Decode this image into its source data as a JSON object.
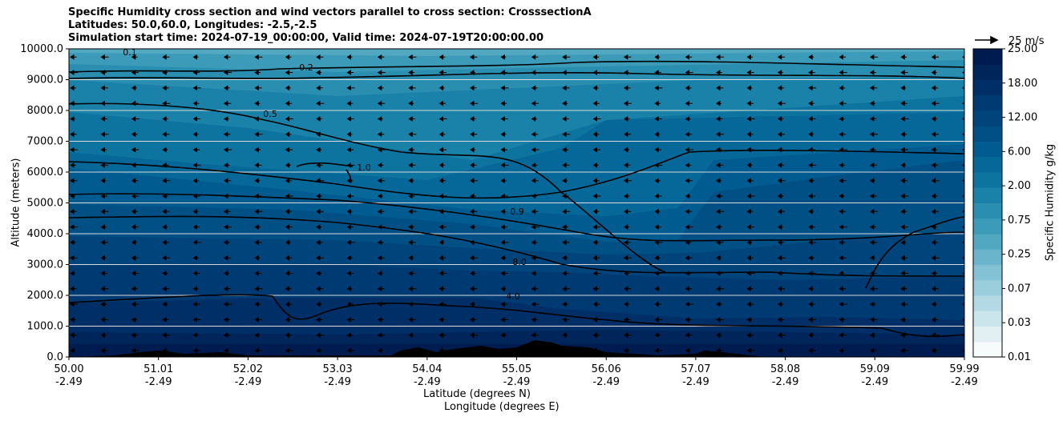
{
  "title_lines": [
    "Specific Humidity cross section and wind vectors parallel to cross section: CrosssectionA",
    "Latitudes: 50.0,60.0, Longitudes: -2.5,-2.5",
    "Simulation start time: 2024-07-19_00:00:00, Valid time: 2024-07-19T20:00:00.00"
  ],
  "chart_data": {
    "type": "heatmap",
    "ylabel": "Altitude (meters)",
    "xlabel_lat": "Latitude (degrees N)",
    "xlabel_lon": "Longitude (degrees E)",
    "ylim": [
      0,
      10000
    ],
    "xlim": [
      50.0,
      59.99
    ],
    "y_ticks": [
      "0.0",
      "1000.0",
      "2000.0",
      "3000.0",
      "4000.0",
      "5000.0",
      "6000.0",
      "7000.0",
      "8000.0",
      "9000.0",
      "10000.0"
    ],
    "x_ticks_lat": [
      "50.00",
      "51.01",
      "52.02",
      "53.03",
      "54.04",
      "55.05",
      "56.06",
      "57.07",
      "58.08",
      "59.09",
      "59.99"
    ],
    "x_ticks_lon": [
      "-2.49",
      "-2.49",
      "-2.49",
      "-2.49",
      "-2.49",
      "-2.49",
      "-2.49",
      "-2.49",
      "-2.49",
      "-2.49",
      "-2.49"
    ],
    "grid": "horizontal",
    "colorbar": {
      "label": "Specific Humidity g/kg",
      "tick_labels": [
        "0.01",
        "0.03",
        "0.07",
        "0.25",
        "0.75",
        "2.00",
        "6.00",
        "12.00",
        "18.00",
        "25.00"
      ],
      "colors": [
        "#f7fbfc",
        "#e2f0f3",
        "#cbe5ec",
        "#b3dae4",
        "#9bcedc",
        "#83c2d4",
        "#6ab5cb",
        "#52a8c1",
        "#3b9bb8",
        "#2a8eb0",
        "#1a81a8",
        "#0d74a0",
        "#056898",
        "#005c90",
        "#005086",
        "#00447c",
        "#003a72",
        "#002f67",
        "#00255b",
        "#001b4f"
      ]
    },
    "wind_key": "25 m/s",
    "contour_labels": [
      "0.1",
      "0.2",
      "0.5",
      "1.0",
      "0.9",
      "4.0",
      "8.0"
    ],
    "wind_direction": "southward"
  }
}
